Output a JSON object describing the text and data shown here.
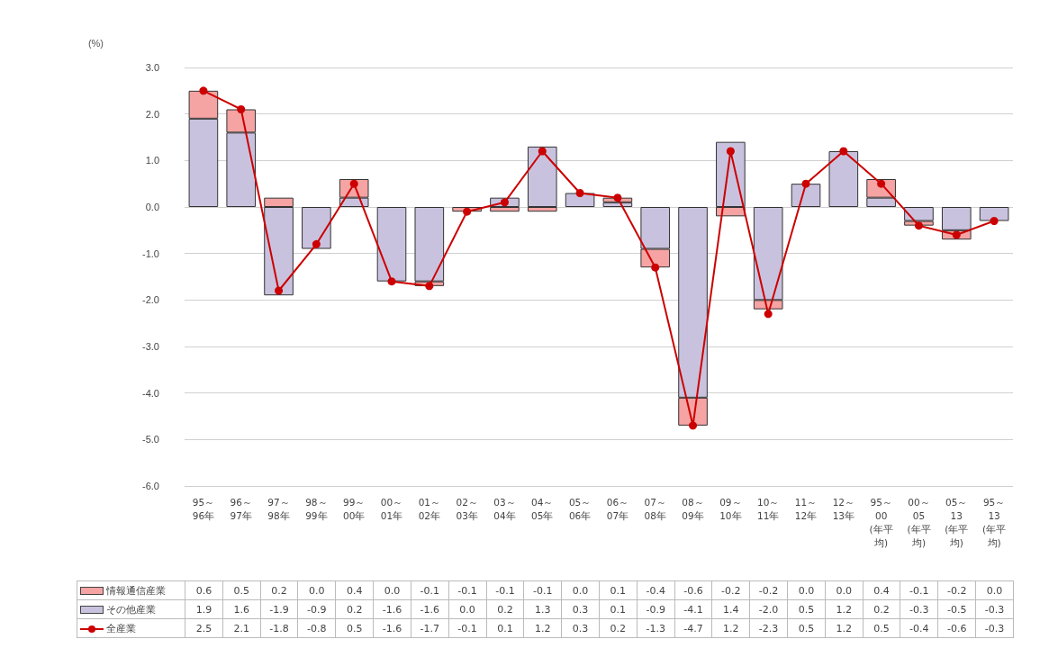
{
  "chart_data": {
    "type": "bar",
    "stacked": true,
    "ylabel": "(%)",
    "categories": [
      "95～96年",
      "96～97年",
      "97～98年",
      "98～99年",
      "99～00年",
      "00～01年",
      "01～02年",
      "02～03年",
      "03～04年",
      "04～05年",
      "05～06年",
      "06～07年",
      "07～08年",
      "08～09年",
      "09～10年",
      "10～11年",
      "11～12年",
      "12～13年",
      "95～00(年平均)",
      "00～05(年平均)",
      "05～13(年平均)",
      "95～13(年平均)"
    ],
    "series": [
      {
        "name": "その他産業",
        "color": "#c9c2de",
        "values": [
          1.9,
          1.6,
          -1.9,
          -0.9,
          0.2,
          -1.6,
          -1.6,
          0.0,
          0.2,
          1.3,
          0.3,
          0.1,
          -0.9,
          -4.1,
          1.4,
          -2.0,
          0.5,
          1.2,
          0.2,
          -0.3,
          -0.5,
          -0.3
        ],
        "value_labels": [
          "1.9",
          "1.6",
          "-1.9",
          "-0.9",
          "0.2",
          "-1.6",
          "-1.6",
          "0.0",
          "0.2",
          "1.3",
          "0.3",
          "0.1",
          "-0.9",
          "-4.1",
          "1.4",
          "-2.0",
          "0.5",
          "1.2",
          "0.2",
          "-0.3",
          "-0.5",
          "-0.3"
        ]
      },
      {
        "name": "情報通信産業",
        "color": "#f5a3a3",
        "values": [
          0.6,
          0.5,
          0.2,
          0.0,
          0.4,
          0.0,
          -0.1,
          -0.1,
          -0.1,
          -0.1,
          0.0,
          0.1,
          -0.4,
          -0.6,
          -0.2,
          -0.2,
          0.0,
          0.0,
          0.4,
          -0.1,
          -0.2,
          0.0
        ],
        "value_labels": [
          "0.6",
          "0.5",
          "0.2",
          "0.0",
          "0.4",
          "0.0",
          "-0.1",
          "-0.1",
          "-0.1",
          "-0.1",
          "0.0",
          "0.1",
          "-0.4",
          "-0.6",
          "-0.2",
          "-0.2",
          "0.0",
          "0.0",
          "0.4",
          "-0.1",
          "-0.2",
          "0.0"
        ]
      },
      {
        "name": "全産業",
        "type": "line",
        "color": "#cc0000",
        "marker": "circle",
        "values": [
          2.5,
          2.1,
          -1.8,
          -0.8,
          0.5,
          -1.6,
          -1.7,
          -0.1,
          0.1,
          1.2,
          0.3,
          0.2,
          -1.3,
          -4.7,
          1.2,
          -2.3,
          0.5,
          1.2,
          0.5,
          -0.4,
          -0.6,
          -0.3
        ],
        "value_labels": [
          "2.5",
          "2.1",
          "-1.8",
          "-0.8",
          "0.5",
          "-1.6",
          "-1.7",
          "-0.1",
          "0.1",
          "1.2",
          "0.3",
          "0.2",
          "-1.3",
          "-4.7",
          "1.2",
          "-2.3",
          "0.5",
          "1.2",
          "0.5",
          "-0.4",
          "-0.6",
          "-0.3"
        ]
      }
    ],
    "ylim": [
      -6,
      3
    ],
    "yticks": [
      {
        "value": -6,
        "label": "-6.0"
      },
      {
        "value": -5,
        "label": "-5.0"
      },
      {
        "value": -4,
        "label": "-4.0"
      },
      {
        "value": -3,
        "label": "-3.0"
      },
      {
        "value": -2,
        "label": "-2.0"
      },
      {
        "value": -1,
        "label": "-1.0"
      },
      {
        "value": 0,
        "label": "0.0"
      },
      {
        "value": 1,
        "label": "1.0"
      },
      {
        "value": 2,
        "label": "2.0"
      },
      {
        "value": 3,
        "label": "3.0"
      }
    ],
    "grid": "y",
    "legend": "bottom"
  }
}
